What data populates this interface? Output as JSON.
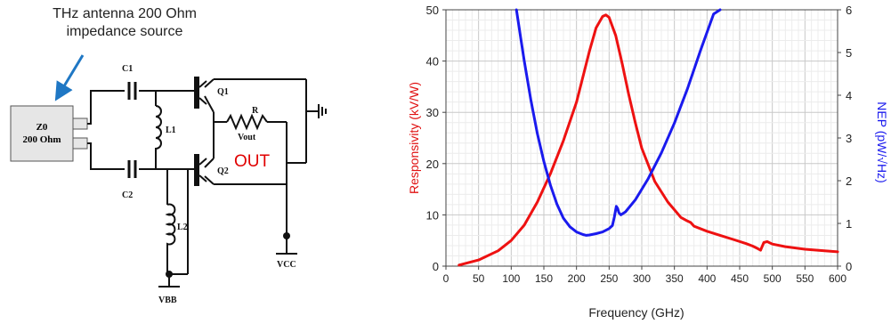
{
  "annotation": {
    "line1": "THz antenna 200 Ohm",
    "line2": "impedance source"
  },
  "circuit": {
    "source_name": "Z0",
    "source_value": "200 Ohm",
    "labels": {
      "c1": "C1",
      "c2": "C2",
      "l1": "L1",
      "l2": "L2",
      "q1": "Q1",
      "q2": "Q2",
      "r": "R",
      "vout": "Vout",
      "out": "OUT",
      "vcc": "VCC",
      "vbb": "VBB"
    },
    "out_color": "#e00000"
  },
  "chart_data": {
    "type": "line",
    "xlabel": "Frequency (GHz)",
    "ylabel": "Responsivity (kV/W)",
    "y2label": "NEP (pW/√Hz)",
    "xlim": [
      0,
      600
    ],
    "ylim": [
      0,
      50
    ],
    "y2lim": [
      0,
      6
    ],
    "xticks": [
      0,
      50,
      100,
      150,
      200,
      250,
      300,
      350,
      400,
      450,
      500,
      550,
      600
    ],
    "yticks": [
      0,
      10,
      20,
      30,
      40,
      50
    ],
    "y2ticks": [
      0,
      1,
      2,
      3,
      4,
      5,
      6
    ],
    "grid": true,
    "series": [
      {
        "axis": "left",
        "color": "#ee1111",
        "x": [
          20,
          50,
          80,
          100,
          120,
          140,
          160,
          180,
          200,
          210,
          220,
          230,
          240,
          245,
          250,
          260,
          270,
          280,
          290,
          300,
          320,
          340,
          360,
          370,
          375,
          380,
          400,
          420,
          440,
          460,
          470,
          478,
          482,
          487,
          492,
          500,
          520,
          550,
          580,
          600
        ],
        "y": [
          0.2,
          1.2,
          3.0,
          5.0,
          8.0,
          12.5,
          18.0,
          24.5,
          32.0,
          37.0,
          42.0,
          46.5,
          48.7,
          49.0,
          48.5,
          45.0,
          39.5,
          33.5,
          28.0,
          23.0,
          16.5,
          12.5,
          9.5,
          8.8,
          8.5,
          7.8,
          6.8,
          6.0,
          5.2,
          4.4,
          3.9,
          3.4,
          3.1,
          4.6,
          4.8,
          4.3,
          3.8,
          3.3,
          3.0,
          2.8
        ]
      },
      {
        "axis": "right",
        "color": "#1a1aee",
        "x": [
          108,
          115,
          120,
          130,
          140,
          150,
          160,
          170,
          180,
          190,
          200,
          210,
          215,
          220,
          230,
          240,
          250,
          255,
          258,
          261,
          263,
          265,
          268,
          275,
          290,
          310,
          330,
          350,
          370,
          390,
          410,
          420
        ],
        "y": [
          6.0,
          5.3,
          4.8,
          3.9,
          3.1,
          2.45,
          1.9,
          1.45,
          1.12,
          0.92,
          0.8,
          0.74,
          0.72,
          0.73,
          0.76,
          0.8,
          0.88,
          0.95,
          1.15,
          1.4,
          1.35,
          1.25,
          1.2,
          1.27,
          1.55,
          2.05,
          2.65,
          3.35,
          4.15,
          5.05,
          5.9,
          6.0
        ]
      }
    ]
  }
}
